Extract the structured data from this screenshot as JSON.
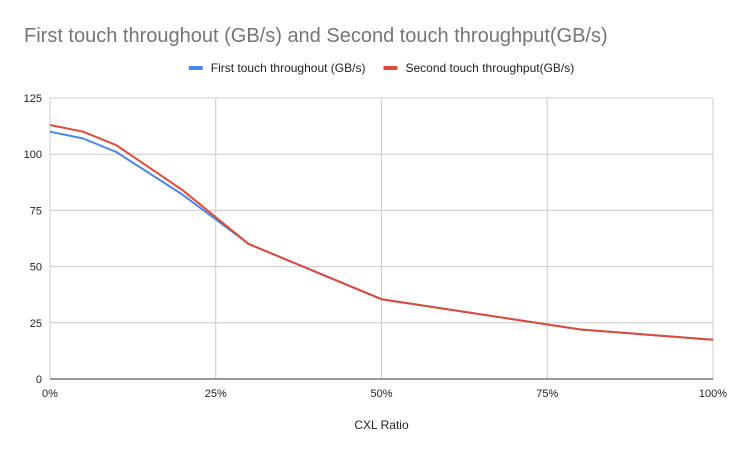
{
  "chart_data": {
    "type": "line",
    "title": "First touch throughout (GB/s) and Second touch throughput(GB/s)",
    "xlabel": "CXL Ratio",
    "ylabel": "",
    "xlim": [
      0,
      100
    ],
    "ylim": [
      0,
      125
    ],
    "x_ticks": [
      "0%",
      "25%",
      "50%",
      "75%",
      "100%"
    ],
    "y_ticks": [
      "0",
      "25",
      "50",
      "75",
      "100",
      "125"
    ],
    "grid": true,
    "legend_position": "top",
    "series": [
      {
        "name": "First touch throughout (GB/s)",
        "color": "#4a86e8",
        "x": [
          0,
          5,
          10,
          20,
          30,
          50,
          80,
          100
        ],
        "y": [
          110,
          107,
          101,
          82,
          60,
          35.5,
          22,
          17.5
        ]
      },
      {
        "name": "Second touch throughput(GB/s)",
        "color": "#dd4b39",
        "x": [
          0,
          5,
          10,
          20,
          30,
          50,
          80,
          100
        ],
        "y": [
          113,
          110,
          104,
          84,
          60,
          35.5,
          22,
          17.5
        ]
      }
    ]
  }
}
